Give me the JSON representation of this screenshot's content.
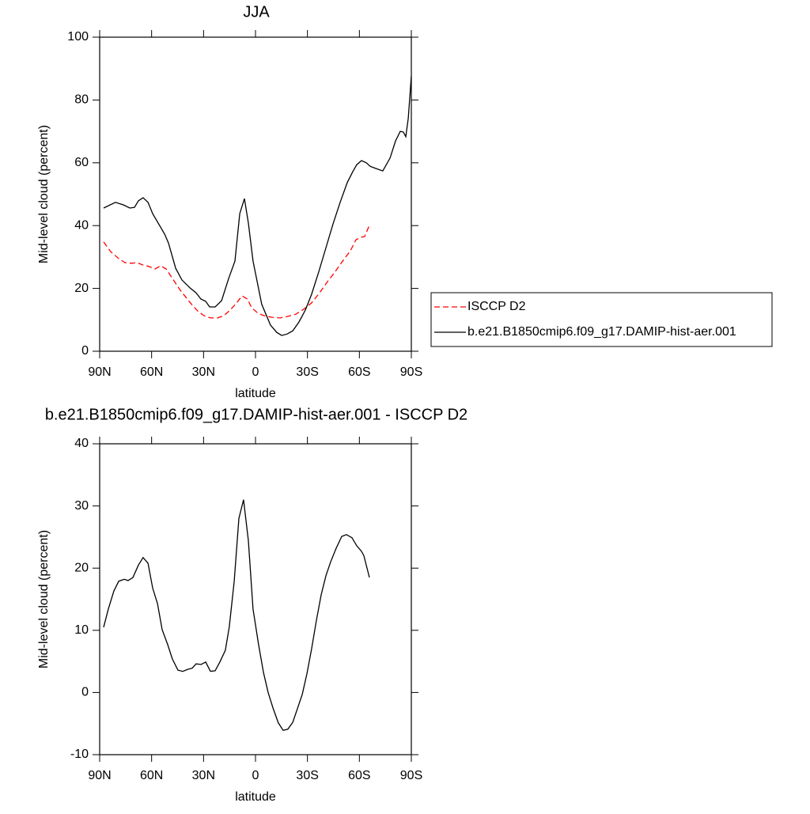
{
  "chart_data": [
    {
      "type": "line",
      "title": "JJA",
      "xlabel": "latitude",
      "ylabel": "Mid-level cloud (percent)",
      "xlim": [
        90,
        -90
      ],
      "xticks": [
        {
          "value": 90,
          "label": "90N"
        },
        {
          "value": 60,
          "label": "60N"
        },
        {
          "value": 30,
          "label": "30N"
        },
        0,
        {
          "value": -30,
          "label": "30S"
        },
        {
          "value": -60,
          "label": "60S"
        },
        {
          "value": -90,
          "label": "90S"
        }
      ],
      "ylim": [
        0,
        100
      ],
      "yticks": [
        0,
        20,
        40,
        60,
        80,
        100
      ],
      "legend": "right",
      "series": [
        {
          "name": "ISCCP D2",
          "color": "#ff0000",
          "line_style": "dashed",
          "x": [
            87.7,
            83.6,
            79.0,
            75.4,
            71.7,
            68.5,
            65.3,
            61.7,
            58.0,
            54.8,
            51.6,
            48.0,
            43.4,
            37.9,
            33.4,
            29.7,
            26.0,
            21.9,
            18.3,
            14.6,
            10.9,
            7.8,
            4.6,
            2.3,
            -1.4,
            -5.0,
            -9.6,
            -14.2,
            -18.7,
            -23.3,
            -27.9,
            -32.4,
            -37.0,
            -41.6,
            -46.1,
            -50.7,
            -54.8,
            -58.0,
            -60.8,
            -63.0,
            -65.8
          ],
          "values": [
            34.8,
            31.7,
            29.5,
            28.2,
            28.0,
            28.2,
            27.5,
            27.0,
            26.2,
            27.2,
            26.2,
            23.2,
            19.4,
            15.6,
            12.8,
            11.3,
            10.6,
            10.6,
            11.3,
            13.1,
            15.4,
            17.6,
            16.6,
            13.9,
            12.1,
            11.3,
            10.8,
            10.6,
            11.1,
            11.8,
            13.4,
            15.4,
            18.6,
            22.2,
            25.4,
            29.0,
            32.0,
            35.5,
            36.3,
            36.5,
            40.1
          ]
        },
        {
          "name": "b.e21.B1850cmip6.f09_g17.DAMIP-hist-aer.001",
          "color": "#000000",
          "line_style": "solid",
          "x": [
            87.7,
            80.9,
            76.3,
            72.6,
            69.9,
            67.6,
            64.9,
            62.1,
            59.4,
            52.5,
            50.3,
            46.1,
            42.5,
            37.9,
            34.3,
            31.5,
            28.8,
            26.5,
            23.3,
            19.6,
            15.5,
            11.9,
            9.1,
            6.4,
            4.1,
            1.4,
            -3.6,
            -8.7,
            -12.3,
            -15.1,
            -18.3,
            -21.5,
            -25.1,
            -28.8,
            -32.4,
            -36.6,
            -40.7,
            -44.8,
            -48.9,
            -53.0,
            -56.2,
            -58.5,
            -61.2,
            -64.0,
            -66.2,
            -69.4,
            -73.5,
            -77.7,
            -80.9,
            -83.6,
            -85.4,
            -86.8,
            -88.2,
            -90.0
          ],
          "values": [
            45.6,
            47.4,
            46.6,
            45.6,
            45.8,
            47.9,
            48.9,
            47.4,
            43.8,
            37.3,
            34.5,
            26.4,
            22.7,
            20.2,
            18.6,
            16.6,
            15.9,
            14.1,
            14.1,
            16.1,
            23.2,
            28.7,
            43.8,
            48.6,
            40.8,
            28.7,
            14.9,
            8.3,
            6.0,
            5.0,
            5.5,
            6.5,
            9.3,
            13.1,
            18.1,
            25.4,
            33.0,
            40.6,
            47.4,
            53.7,
            57.2,
            59.4,
            60.7,
            60.0,
            58.9,
            58.2,
            57.4,
            61.5,
            67.0,
            70.0,
            69.8,
            68.3,
            74.1,
            87.6
          ]
        }
      ]
    },
    {
      "type": "line",
      "title": "b.e21.B1850cmip6.f09_g17.DAMIP-hist-aer.001 - ISCCP D2",
      "xlabel": "latitude",
      "ylabel": "Mid-level cloud (percent)",
      "xlim": [
        90,
        -90
      ],
      "xticks": [
        {
          "value": 90,
          "label": "90N"
        },
        {
          "value": 60,
          "label": "60N"
        },
        {
          "value": 30,
          "label": "30N"
        },
        0,
        {
          "value": -30,
          "label": "30S"
        },
        {
          "value": -60,
          "label": "60S"
        },
        {
          "value": -90,
          "label": "90S"
        }
      ],
      "ylim": [
        -10,
        40
      ],
      "yticks": [
        -10,
        0,
        10,
        20,
        30,
        40
      ],
      "series": [
        {
          "color": "#000000",
          "line_style": "solid",
          "x": [
            87.7,
            85.0,
            81.8,
            79.0,
            75.8,
            73.6,
            70.8,
            67.6,
            64.9,
            62.1,
            59.4,
            56.6,
            53.9,
            50.7,
            48.0,
            44.8,
            42.0,
            39.3,
            36.6,
            34.3,
            31.5,
            28.8,
            26.0,
            23.3,
            20.6,
            17.4,
            15.1,
            12.3,
            9.6,
            6.9,
            4.1,
            1.4,
            -1.8,
            -4.6,
            -7.3,
            -10.1,
            -13.2,
            -16.0,
            -18.7,
            -21.5,
            -24.2,
            -27.0,
            -29.7,
            -32.4,
            -35.2,
            -37.9,
            -40.7,
            -43.4,
            -46.6,
            -49.8,
            -52.5,
            -55.7,
            -58.5,
            -61.2,
            -62.6,
            -65.8
          ],
          "values": [
            10.5,
            13.4,
            16.3,
            17.9,
            18.2,
            18.0,
            18.5,
            20.5,
            21.7,
            20.8,
            16.8,
            14.3,
            10.1,
            7.7,
            5.4,
            3.6,
            3.4,
            3.7,
            3.9,
            4.6,
            4.5,
            4.9,
            3.4,
            3.5,
            4.9,
            6.8,
            10.6,
            17.9,
            28.0,
            31.0,
            24.4,
            13.4,
            7.7,
            3.2,
            0.0,
            -2.5,
            -4.9,
            -6.1,
            -5.9,
            -4.8,
            -2.6,
            -0.3,
            3.0,
            7.0,
            11.6,
            15.7,
            18.8,
            21.0,
            23.2,
            25.1,
            25.4,
            24.9,
            23.6,
            22.7,
            22.0,
            18.5
          ]
        }
      ]
    }
  ]
}
